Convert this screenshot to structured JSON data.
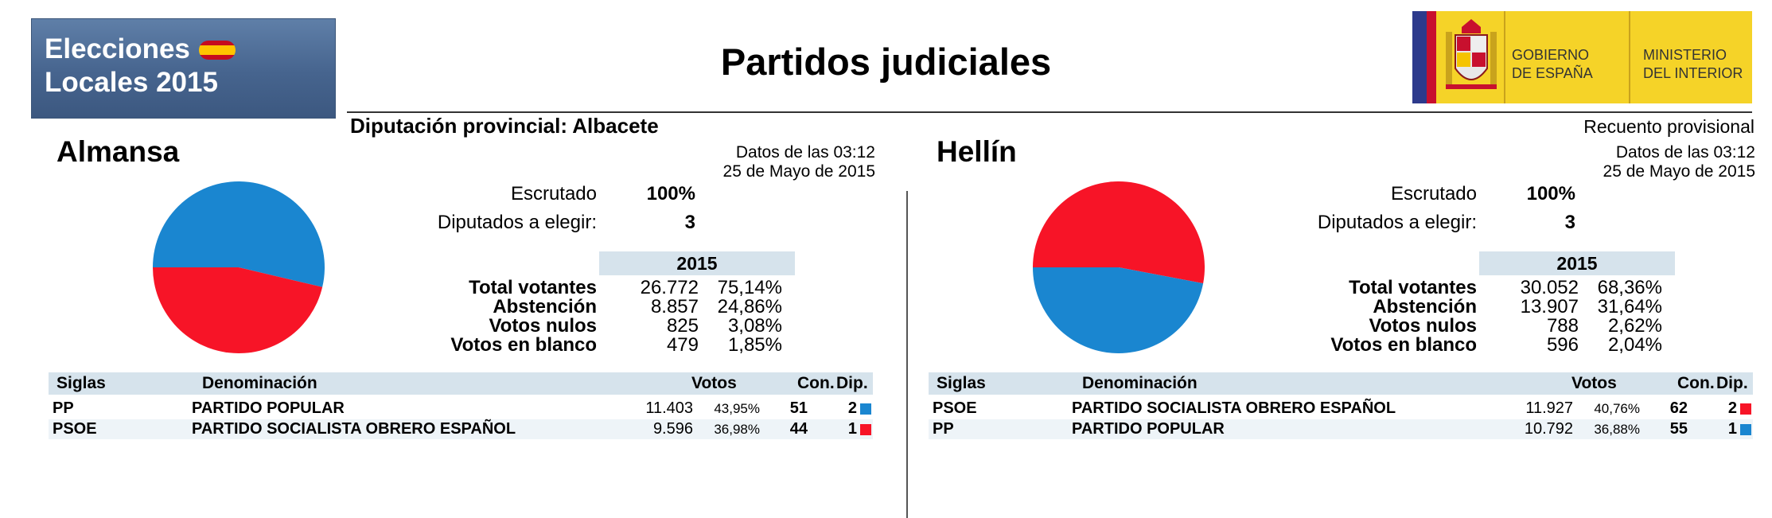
{
  "logo": {
    "line1": "Elecciones",
    "line2": "Locales 2015"
  },
  "title": "Partidos judiciales",
  "gobierno": {
    "text1a": "GOBIERNO",
    "text1b": "DE ESPAÑA",
    "text2a": "MINISTERIO",
    "text2b": "DEL INTERIOR"
  },
  "subtitle": "Diputación provincial: Albacete",
  "status": "Recuento provisional",
  "colors": {
    "PP": "#1a86d0",
    "PSOE": "#f71427",
    "header_bg": "#d6e3ec"
  },
  "panels": [
    {
      "name": "Almansa",
      "fecha1": "Datos de las 03:12",
      "fecha2": "25 de Mayo de 2015",
      "escrutado_label": "Escrutado",
      "escrutado": "100%",
      "diputados_label": "Diputados a elegir:",
      "diputados": "3",
      "year": "2015",
      "stats": [
        {
          "label": "Total votantes",
          "num": "26.772",
          "pct": "75,14%"
        },
        {
          "label": "Abstención",
          "num": "8.857",
          "pct": "24,86%"
        },
        {
          "label": "Votos nulos",
          "num": "825",
          "pct": "3,08%"
        },
        {
          "label": "Votos en blanco",
          "num": "479",
          "pct": "1,85%"
        }
      ],
      "table_headers": {
        "siglas": "Siglas",
        "denominacion": "Denominación",
        "votos": "Votos",
        "con": "Con.",
        "dip": "Dip."
      },
      "rows": [
        {
          "siglas": "PP",
          "denominacion": "PARTIDO POPULAR",
          "votos": "11.403",
          "pct": "43,95%",
          "con": "51",
          "dip": "2",
          "color": "#1a86d0"
        },
        {
          "siglas": "PSOE",
          "denominacion": "PARTIDO SOCIALISTA OBRERO ESPAÑOL",
          "votos": "9.596",
          "pct": "36,98%",
          "con": "44",
          "dip": "1",
          "color": "#f71427"
        }
      ],
      "chart_data": {
        "type": "pie",
        "series": [
          {
            "name": "PP",
            "value": 51,
            "color": "#1a86d0"
          },
          {
            "name": "PSOE",
            "value": 44,
            "color": "#f71427"
          }
        ]
      }
    },
    {
      "name": "Hellín",
      "fecha1": "Datos de las 03:12",
      "fecha2": "25 de Mayo de 2015",
      "escrutado_label": "Escrutado",
      "escrutado": "100%",
      "diputados_label": "Diputados a elegir:",
      "diputados": "3",
      "year": "2015",
      "stats": [
        {
          "label": "Total votantes",
          "num": "30.052",
          "pct": "68,36%"
        },
        {
          "label": "Abstención",
          "num": "13.907",
          "pct": "31,64%"
        },
        {
          "label": "Votos nulos",
          "num": "788",
          "pct": "2,62%"
        },
        {
          "label": "Votos en blanco",
          "num": "596",
          "pct": "2,04%"
        }
      ],
      "table_headers": {
        "siglas": "Siglas",
        "denominacion": "Denominación",
        "votos": "Votos",
        "con": "Con.",
        "dip": "Dip."
      },
      "rows": [
        {
          "siglas": "PSOE",
          "denominacion": "PARTIDO SOCIALISTA OBRERO ESPAÑOL",
          "votos": "11.927",
          "pct": "40,76%",
          "con": "62",
          "dip": "2",
          "color": "#f71427"
        },
        {
          "siglas": "PP",
          "denominacion": "PARTIDO POPULAR",
          "votos": "10.792",
          "pct": "36,88%",
          "con": "55",
          "dip": "1",
          "color": "#1a86d0"
        }
      ],
      "chart_data": {
        "type": "pie",
        "series": [
          {
            "name": "PSOE",
            "value": 62,
            "color": "#f71427"
          },
          {
            "name": "PP",
            "value": 55,
            "color": "#1a86d0"
          }
        ]
      }
    }
  ]
}
